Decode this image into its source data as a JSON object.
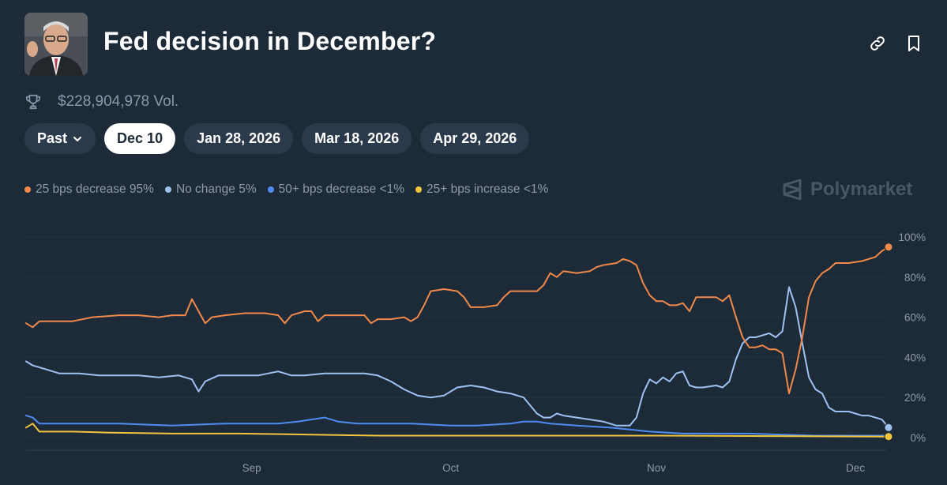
{
  "header": {
    "title": "Fed decision in December?",
    "volume": "$228,904,978 Vol."
  },
  "tabs": [
    {
      "label": "Past",
      "active": false,
      "dropdown": true
    },
    {
      "label": "Dec 10",
      "active": true
    },
    {
      "label": "Jan 28, 2026",
      "active": false
    },
    {
      "label": "Mar 18, 2026",
      "active": false
    },
    {
      "label": "Apr 29, 2026",
      "active": false
    }
  ],
  "legend": [
    {
      "label": "25 bps decrease 95%",
      "color": "#f0894a"
    },
    {
      "label": "No change 5%",
      "color": "#9fc2f3"
    },
    {
      "label": "50+ bps decrease <1%",
      "color": "#4f8cf0"
    },
    {
      "label": "25+ bps increase <1%",
      "color": "#f2c53d"
    }
  ],
  "watermark": "Polymarket",
  "icons": {
    "volume": "trophy-icon",
    "link": "link-icon",
    "bookmark": "bookmark-icon",
    "dropdown": "chevron-down-icon"
  },
  "chart_data": {
    "type": "line",
    "x_range": [
      "2025-07-29",
      "2025-12-06"
    ],
    "ylim": [
      0,
      100
    ],
    "y_ticks": [
      {
        "value": 100,
        "label": "100%"
      },
      {
        "value": 80,
        "label": "80%"
      },
      {
        "value": 60,
        "label": "60%"
      },
      {
        "value": 40,
        "label": "40%"
      },
      {
        "value": 20,
        "label": "20%"
      },
      {
        "value": 0,
        "label": "0%"
      }
    ],
    "x_ticks": [
      {
        "date": "2025-09-01",
        "label": "Sep"
      },
      {
        "date": "2025-10-01",
        "label": "Oct"
      },
      {
        "date": "2025-11-01",
        "label": "Nov"
      },
      {
        "date": "2025-12-01",
        "label": "Dec"
      }
    ],
    "grid": "horizontal-dotted",
    "series": [
      {
        "name": "25 bps decrease",
        "color": "#f0894a",
        "points": [
          [
            "2025-07-29",
            57
          ],
          [
            "2025-07-30",
            55
          ],
          [
            "2025-07-31",
            58
          ],
          [
            "2025-08-02",
            58
          ],
          [
            "2025-08-05",
            58
          ],
          [
            "2025-08-08",
            60
          ],
          [
            "2025-08-12",
            61
          ],
          [
            "2025-08-15",
            61
          ],
          [
            "2025-08-18",
            60
          ],
          [
            "2025-08-20",
            61
          ],
          [
            "2025-08-22",
            61
          ],
          [
            "2025-08-23",
            69
          ],
          [
            "2025-08-24",
            63
          ],
          [
            "2025-08-25",
            57
          ],
          [
            "2025-08-26",
            60
          ],
          [
            "2025-08-28",
            61
          ],
          [
            "2025-08-31",
            62
          ],
          [
            "2025-09-03",
            62
          ],
          [
            "2025-09-05",
            61
          ],
          [
            "2025-09-06",
            57
          ],
          [
            "2025-09-07",
            61
          ],
          [
            "2025-09-09",
            63
          ],
          [
            "2025-09-10",
            63
          ],
          [
            "2025-09-11",
            58
          ],
          [
            "2025-09-12",
            61
          ],
          [
            "2025-09-15",
            61
          ],
          [
            "2025-09-18",
            61
          ],
          [
            "2025-09-19",
            57
          ],
          [
            "2025-09-20",
            59
          ],
          [
            "2025-09-22",
            59
          ],
          [
            "2025-09-24",
            60
          ],
          [
            "2025-09-25",
            58
          ],
          [
            "2025-09-26",
            60
          ],
          [
            "2025-09-27",
            66
          ],
          [
            "2025-09-28",
            73
          ],
          [
            "2025-09-30",
            74
          ],
          [
            "2025-10-02",
            73
          ],
          [
            "2025-10-03",
            70
          ],
          [
            "2025-10-04",
            65
          ],
          [
            "2025-10-06",
            65
          ],
          [
            "2025-10-08",
            66
          ],
          [
            "2025-10-09",
            70
          ],
          [
            "2025-10-10",
            73
          ],
          [
            "2025-10-12",
            73
          ],
          [
            "2025-10-14",
            73
          ],
          [
            "2025-10-15",
            76
          ],
          [
            "2025-10-16",
            82
          ],
          [
            "2025-10-17",
            80
          ],
          [
            "2025-10-18",
            83
          ],
          [
            "2025-10-20",
            82
          ],
          [
            "2025-10-22",
            83
          ],
          [
            "2025-10-23",
            85
          ],
          [
            "2025-10-24",
            86
          ],
          [
            "2025-10-26",
            87
          ],
          [
            "2025-10-27",
            89
          ],
          [
            "2025-10-28",
            88
          ],
          [
            "2025-10-29",
            86
          ],
          [
            "2025-10-30",
            77
          ],
          [
            "2025-10-31",
            71
          ],
          [
            "2025-11-01",
            68
          ],
          [
            "2025-11-02",
            68
          ],
          [
            "2025-11-03",
            66
          ],
          [
            "2025-11-04",
            66
          ],
          [
            "2025-11-05",
            67
          ],
          [
            "2025-11-06",
            63
          ],
          [
            "2025-11-07",
            70
          ],
          [
            "2025-11-08",
            70
          ],
          [
            "2025-11-10",
            70
          ],
          [
            "2025-11-11",
            68
          ],
          [
            "2025-11-12",
            71
          ],
          [
            "2025-11-13",
            60
          ],
          [
            "2025-11-14",
            50
          ],
          [
            "2025-11-15",
            45
          ],
          [
            "2025-11-16",
            45
          ],
          [
            "2025-11-17",
            46
          ],
          [
            "2025-11-18",
            44
          ],
          [
            "2025-11-19",
            44
          ],
          [
            "2025-11-20",
            42
          ],
          [
            "2025-11-21",
            22
          ],
          [
            "2025-11-22",
            34
          ],
          [
            "2025-11-23",
            50
          ],
          [
            "2025-11-24",
            70
          ],
          [
            "2025-11-25",
            78
          ],
          [
            "2025-11-26",
            82
          ],
          [
            "2025-11-27",
            84
          ],
          [
            "2025-11-28",
            87
          ],
          [
            "2025-11-30",
            87
          ],
          [
            "2025-12-02",
            88
          ],
          [
            "2025-12-03",
            89
          ],
          [
            "2025-12-04",
            90
          ],
          [
            "2025-12-05",
            93
          ],
          [
            "2025-12-06",
            95
          ]
        ]
      },
      {
        "name": "No change",
        "color": "#9fc2f3",
        "points": [
          [
            "2025-07-29",
            38
          ],
          [
            "2025-07-30",
            36
          ],
          [
            "2025-07-31",
            35
          ],
          [
            "2025-08-01",
            34
          ],
          [
            "2025-08-03",
            32
          ],
          [
            "2025-08-06",
            32
          ],
          [
            "2025-08-09",
            31
          ],
          [
            "2025-08-12",
            31
          ],
          [
            "2025-08-15",
            31
          ],
          [
            "2025-08-18",
            30
          ],
          [
            "2025-08-21",
            31
          ],
          [
            "2025-08-23",
            29
          ],
          [
            "2025-08-24",
            23
          ],
          [
            "2025-08-25",
            28
          ],
          [
            "2025-08-27",
            31
          ],
          [
            "2025-08-30",
            31
          ],
          [
            "2025-09-02",
            31
          ],
          [
            "2025-09-05",
            33
          ],
          [
            "2025-09-07",
            31
          ],
          [
            "2025-09-09",
            31
          ],
          [
            "2025-09-12",
            32
          ],
          [
            "2025-09-15",
            32
          ],
          [
            "2025-09-18",
            32
          ],
          [
            "2025-09-20",
            31
          ],
          [
            "2025-09-22",
            28
          ],
          [
            "2025-09-24",
            24
          ],
          [
            "2025-09-26",
            21
          ],
          [
            "2025-09-28",
            20
          ],
          [
            "2025-09-30",
            21
          ],
          [
            "2025-10-02",
            25
          ],
          [
            "2025-10-04",
            26
          ],
          [
            "2025-10-06",
            25
          ],
          [
            "2025-10-08",
            23
          ],
          [
            "2025-10-10",
            22
          ],
          [
            "2025-10-12",
            20
          ],
          [
            "2025-10-13",
            16
          ],
          [
            "2025-10-14",
            12
          ],
          [
            "2025-10-15",
            10
          ],
          [
            "2025-10-16",
            10
          ],
          [
            "2025-10-17",
            12
          ],
          [
            "2025-10-18",
            11
          ],
          [
            "2025-10-20",
            10
          ],
          [
            "2025-10-22",
            9
          ],
          [
            "2025-10-24",
            8
          ],
          [
            "2025-10-26",
            6
          ],
          [
            "2025-10-28",
            6
          ],
          [
            "2025-10-29",
            10
          ],
          [
            "2025-10-30",
            22
          ],
          [
            "2025-10-31",
            29
          ],
          [
            "2025-11-01",
            27
          ],
          [
            "2025-11-02",
            30
          ],
          [
            "2025-11-03",
            28
          ],
          [
            "2025-11-04",
            32
          ],
          [
            "2025-11-05",
            33
          ],
          [
            "2025-11-06",
            26
          ],
          [
            "2025-11-07",
            25
          ],
          [
            "2025-11-08",
            25
          ],
          [
            "2025-11-10",
            26
          ],
          [
            "2025-11-11",
            25
          ],
          [
            "2025-11-12",
            28
          ],
          [
            "2025-11-13",
            39
          ],
          [
            "2025-11-14",
            47
          ],
          [
            "2025-11-15",
            50
          ],
          [
            "2025-11-16",
            50
          ],
          [
            "2025-11-17",
            51
          ],
          [
            "2025-11-18",
            52
          ],
          [
            "2025-11-19",
            50
          ],
          [
            "2025-11-20",
            53
          ],
          [
            "2025-11-21",
            75
          ],
          [
            "2025-11-22",
            65
          ],
          [
            "2025-11-23",
            47
          ],
          [
            "2025-11-24",
            30
          ],
          [
            "2025-11-25",
            24
          ],
          [
            "2025-11-26",
            22
          ],
          [
            "2025-11-27",
            15
          ],
          [
            "2025-11-28",
            13
          ],
          [
            "2025-11-30",
            13
          ],
          [
            "2025-12-02",
            11
          ],
          [
            "2025-12-03",
            11
          ],
          [
            "2025-12-04",
            10
          ],
          [
            "2025-12-05",
            9
          ],
          [
            "2025-12-06",
            5
          ]
        ]
      },
      {
        "name": "50+ bps decrease",
        "color": "#4f8cf0",
        "points": [
          [
            "2025-07-29",
            11
          ],
          [
            "2025-07-30",
            10
          ],
          [
            "2025-07-31",
            7
          ],
          [
            "2025-08-05",
            7
          ],
          [
            "2025-08-12",
            7
          ],
          [
            "2025-08-20",
            6
          ],
          [
            "2025-08-28",
            7
          ],
          [
            "2025-09-05",
            7
          ],
          [
            "2025-09-08",
            8
          ],
          [
            "2025-09-10",
            9
          ],
          [
            "2025-09-12",
            10
          ],
          [
            "2025-09-14",
            8
          ],
          [
            "2025-09-17",
            7
          ],
          [
            "2025-09-20",
            7
          ],
          [
            "2025-09-25",
            7
          ],
          [
            "2025-10-01",
            6
          ],
          [
            "2025-10-05",
            6
          ],
          [
            "2025-10-10",
            7
          ],
          [
            "2025-10-12",
            8
          ],
          [
            "2025-10-14",
            8
          ],
          [
            "2025-10-16",
            7
          ],
          [
            "2025-10-20",
            6
          ],
          [
            "2025-10-25",
            5
          ],
          [
            "2025-10-28",
            4
          ],
          [
            "2025-10-31",
            3
          ],
          [
            "2025-11-05",
            2
          ],
          [
            "2025-11-10",
            2
          ],
          [
            "2025-11-15",
            2
          ],
          [
            "2025-11-20",
            1.5
          ],
          [
            "2025-11-25",
            1
          ],
          [
            "2025-12-06",
            1
          ]
        ]
      },
      {
        "name": "25+ bps increase",
        "color": "#f2c53d",
        "points": [
          [
            "2025-07-29",
            5
          ],
          [
            "2025-07-30",
            7
          ],
          [
            "2025-07-31",
            3
          ],
          [
            "2025-08-05",
            3
          ],
          [
            "2025-08-10",
            2.5
          ],
          [
            "2025-08-20",
            2
          ],
          [
            "2025-08-30",
            2
          ],
          [
            "2025-09-10",
            1.5
          ],
          [
            "2025-09-20",
            1
          ],
          [
            "2025-10-01",
            1
          ],
          [
            "2025-10-15",
            1
          ],
          [
            "2025-11-01",
            1
          ],
          [
            "2025-11-15",
            0.8
          ],
          [
            "2025-12-06",
            0.5
          ]
        ]
      }
    ]
  }
}
